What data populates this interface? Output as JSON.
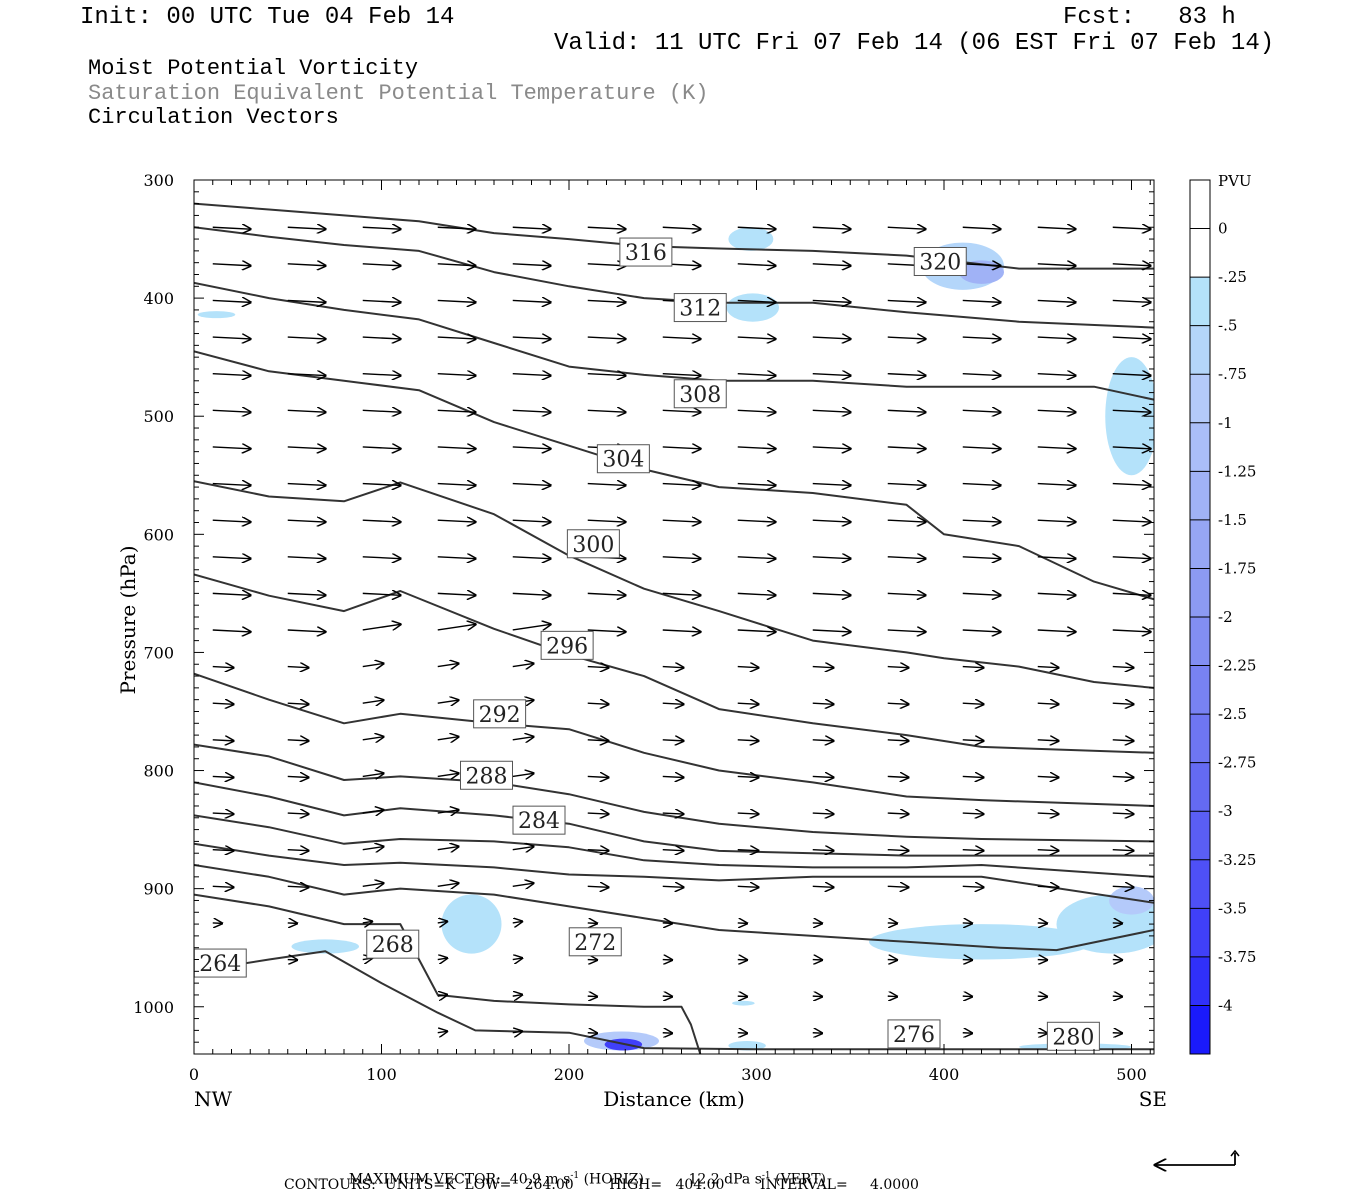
{
  "header": {
    "init": "Init: 00 UTC Tue 04 Feb 14",
    "fcst": "Fcst:   83 h",
    "valid": "Valid: 11 UTC Fri 07 Feb 14 (06 EST Fri 07 Feb 14)"
  },
  "titles": {
    "line1": "Moist Potential Vorticity",
    "line2": "Saturation Equivalent Potential Temperature (K)",
    "line3": "Circulation Vectors"
  },
  "footer": {
    "max_vector_label": "MAXIMUM VECTOR:",
    "max_horiz_value": "40.9 m s",
    "max_horiz_exp": "-1",
    "max_horiz_unit": "(HORIZ)",
    "max_vert_value": "12.2 dPa s",
    "max_vert_exp": "-1",
    "max_vert_unit": "(VERT)",
    "contours": "CONTOURS:  UNITS=K  LOW=   264.00        HIGH=   404.00        INTERVAL=     4.0000"
  },
  "chart_data": {
    "type": "cross-section",
    "xlabel": "Distance (km)",
    "ylabel": "Pressure (hPa)",
    "xlim": [
      0,
      512
    ],
    "ylim": [
      1040,
      300
    ],
    "x_ticks": [
      0,
      100,
      200,
      300,
      400,
      500
    ],
    "y_ticks": [
      300,
      400,
      500,
      600,
      700,
      800,
      900,
      1000
    ],
    "x_endpoints": {
      "left": "NW",
      "right": "SE"
    },
    "colorbar": {
      "unit": "PVU",
      "labels": [
        "0",
        "-.25",
        "-.5",
        "-.75",
        "-1",
        "-1.25",
        "-1.5",
        "-1.75",
        "-2",
        "-2.25",
        "-2.5",
        "-2.75",
        "-3",
        "-3.25",
        "-3.5",
        "-3.75",
        "-4"
      ],
      "colors": [
        "#ffffff",
        "#ffffff",
        "#b4e2fa",
        "#b4d6fa",
        "#b4cafa",
        "#aabef8",
        "#a0b2f6",
        "#96a6f4",
        "#8c9af2",
        "#828ef2",
        "#7882f2",
        "#6e76f2",
        "#646af2",
        "#5a5ef4",
        "#4e50f6",
        "#4040f8",
        "#3030fa",
        "#1a1afc"
      ]
    },
    "theta_contour_labels": [
      {
        "value": "264",
        "x": 14,
        "p": 963
      },
      {
        "value": "268",
        "x": 106,
        "p": 947
      },
      {
        "value": "272",
        "x": 214,
        "p": 945
      },
      {
        "value": "276",
        "x": 384,
        "p": 1023
      },
      {
        "value": "280",
        "x": 469,
        "p": 1025
      },
      {
        "value": "284",
        "x": 184,
        "p": 842
      },
      {
        "value": "288",
        "x": 156,
        "p": 804
      },
      {
        "value": "292",
        "x": 163,
        "p": 752
      },
      {
        "value": "296",
        "x": 199,
        "p": 694
      },
      {
        "value": "300",
        "x": 213,
        "p": 608
      },
      {
        "value": "304",
        "x": 229,
        "p": 536
      },
      {
        "value": "308",
        "x": 270,
        "p": 481
      },
      {
        "value": "312",
        "x": 270,
        "p": 408
      },
      {
        "value": "316",
        "x": 241,
        "p": 361
      },
      {
        "value": "320",
        "x": 398,
        "p": 369
      }
    ],
    "theta_contours": [
      [
        [
          0,
          320
        ],
        [
          40,
          325
        ],
        [
          80,
          330
        ],
        [
          120,
          335
        ],
        [
          160,
          345
        ],
        [
          200,
          350
        ],
        [
          240,
          356
        ],
        [
          280,
          358
        ],
        [
          330,
          360
        ],
        [
          380,
          364
        ],
        [
          440,
          375
        ],
        [
          512,
          375
        ]
      ],
      [
        [
          0,
          340
        ],
        [
          40,
          348
        ],
        [
          80,
          355
        ],
        [
          120,
          360
        ],
        [
          160,
          378
        ],
        [
          200,
          390
        ],
        [
          240,
          400
        ],
        [
          280,
          404
        ],
        [
          330,
          404
        ],
        [
          380,
          412
        ],
        [
          440,
          420
        ],
        [
          512,
          425
        ]
      ],
      [
        [
          0,
          387
        ],
        [
          40,
          400
        ],
        [
          80,
          410
        ],
        [
          120,
          418
        ],
        [
          160,
          438
        ],
        [
          200,
          458
        ],
        [
          240,
          465
        ],
        [
          280,
          470
        ],
        [
          330,
          470
        ],
        [
          380,
          475
        ],
        [
          440,
          475
        ],
        [
          480,
          475
        ],
        [
          512,
          486
        ]
      ],
      [
        [
          0,
          445
        ],
        [
          40,
          462
        ],
        [
          80,
          470
        ],
        [
          120,
          478
        ],
        [
          160,
          505
        ],
        [
          200,
          525
        ],
        [
          240,
          545
        ],
        [
          280,
          560
        ],
        [
          330,
          565
        ],
        [
          380,
          575
        ],
        [
          400,
          600
        ],
        [
          440,
          610
        ],
        [
          480,
          640
        ],
        [
          512,
          655
        ]
      ],
      [
        [
          0,
          555
        ],
        [
          40,
          568
        ],
        [
          80,
          572
        ],
        [
          110,
          556
        ],
        [
          160,
          583
        ],
        [
          200,
          618
        ],
        [
          240,
          646
        ],
        [
          280,
          665
        ],
        [
          330,
          690
        ],
        [
          380,
          700
        ],
        [
          400,
          705
        ],
        [
          440,
          712
        ],
        [
          480,
          725
        ],
        [
          512,
          730
        ]
      ],
      [
        [
          0,
          634
        ],
        [
          40,
          652
        ],
        [
          80,
          665
        ],
        [
          110,
          648
        ],
        [
          160,
          680
        ],
        [
          200,
          702
        ],
        [
          240,
          720
        ],
        [
          280,
          748
        ],
        [
          330,
          760
        ],
        [
          380,
          770
        ],
        [
          420,
          780
        ],
        [
          512,
          785
        ]
      ],
      [
        [
          0,
          718
        ],
        [
          40,
          740
        ],
        [
          80,
          760
        ],
        [
          110,
          752
        ],
        [
          160,
          760
        ],
        [
          200,
          765
        ],
        [
          240,
          785
        ],
        [
          280,
          800
        ],
        [
          330,
          810
        ],
        [
          380,
          822
        ],
        [
          420,
          825
        ],
        [
          512,
          830
        ]
      ],
      [
        [
          0,
          778
        ],
        [
          40,
          788
        ],
        [
          80,
          808
        ],
        [
          110,
          805
        ],
        [
          160,
          810
        ],
        [
          200,
          820
        ],
        [
          240,
          835
        ],
        [
          280,
          845
        ],
        [
          330,
          852
        ],
        [
          380,
          856
        ],
        [
          420,
          858
        ],
        [
          512,
          860
        ]
      ],
      [
        [
          0,
          810
        ],
        [
          40,
          822
        ],
        [
          80,
          838
        ],
        [
          110,
          832
        ],
        [
          160,
          838
        ],
        [
          200,
          845
        ],
        [
          240,
          860
        ],
        [
          280,
          868
        ],
        [
          330,
          870
        ],
        [
          380,
          872
        ],
        [
          420,
          872
        ],
        [
          512,
          872
        ]
      ],
      [
        [
          0,
          838
        ],
        [
          40,
          848
        ],
        [
          80,
          862
        ],
        [
          110,
          858
        ],
        [
          160,
          860
        ],
        [
          200,
          865
        ],
        [
          240,
          876
        ],
        [
          280,
          880
        ],
        [
          330,
          882
        ],
        [
          380,
          882
        ],
        [
          420,
          880
        ],
        [
          512,
          890
        ]
      ],
      [
        [
          0,
          862
        ],
        [
          40,
          872
        ],
        [
          80,
          880
        ],
        [
          110,
          878
        ],
        [
          160,
          882
        ],
        [
          200,
          888
        ],
        [
          240,
          890
        ],
        [
          280,
          893
        ],
        [
          330,
          890
        ],
        [
          380,
          890
        ],
        [
          420,
          890
        ],
        [
          512,
          912
        ]
      ],
      [
        [
          0,
          880
        ],
        [
          40,
          890
        ],
        [
          80,
          905
        ],
        [
          110,
          900
        ],
        [
          160,
          905
        ],
        [
          200,
          915
        ],
        [
          240,
          925
        ],
        [
          280,
          935
        ],
        [
          330,
          940
        ],
        [
          380,
          945
        ],
        [
          430,
          950
        ],
        [
          460,
          952
        ],
        [
          512,
          935
        ]
      ],
      [
        [
          0,
          905
        ],
        [
          40,
          915
        ],
        [
          80,
          930
        ],
        [
          110,
          930
        ],
        [
          120,
          960
        ],
        [
          130,
          990
        ],
        [
          160,
          995
        ],
        [
          200,
          998
        ],
        [
          240,
          1000
        ],
        [
          260,
          1000
        ],
        [
          265,
          1015
        ],
        [
          270,
          1040
        ]
      ],
      [
        [
          0,
          970
        ],
        [
          40,
          960
        ],
        [
          70,
          953
        ],
        [
          100,
          980
        ],
        [
          130,
          1005
        ],
        [
          150,
          1020
        ],
        [
          200,
          1022
        ],
        [
          240,
          1035
        ],
        [
          300,
          1036
        ],
        [
          400,
          1036
        ],
        [
          512,
          1036
        ]
      ]
    ],
    "pv_shading": [
      {
        "x": 148,
        "p": 930,
        "rx": 16,
        "rp": 25,
        "level": 2
      },
      {
        "x": 228,
        "p": 1029,
        "rx": 20,
        "rp": 8,
        "level": 4
      },
      {
        "x": 229,
        "p": 1032,
        "rx": 10,
        "rp": 5,
        "level": 15
      },
      {
        "x": 70,
        "p": 949,
        "rx": 18,
        "rp": 6,
        "level": 2
      },
      {
        "x": 410,
        "p": 373,
        "rx": 22,
        "rp": 20,
        "level": 3
      },
      {
        "x": 420,
        "p": 378,
        "rx": 12,
        "rp": 10,
        "level": 6
      },
      {
        "x": 297,
        "p": 350,
        "rx": 12,
        "rp": 10,
        "level": 2
      },
      {
        "x": 298,
        "p": 408,
        "rx": 14,
        "rp": 12,
        "level": 2
      },
      {
        "x": 500,
        "p": 500,
        "rx": 14,
        "rp": 50,
        "level": 2
      },
      {
        "x": 490,
        "p": 930,
        "rx": 30,
        "rp": 25,
        "level": 2
      },
      {
        "x": 420,
        "p": 945,
        "rx": 60,
        "rp": 15,
        "level": 2
      },
      {
        "x": 500,
        "p": 910,
        "rx": 12,
        "rp": 12,
        "level": 4
      },
      {
        "x": 12,
        "p": 414,
        "rx": 10,
        "rp": 3,
        "level": 2
      },
      {
        "x": 295,
        "p": 1033,
        "rx": 10,
        "rp": 4,
        "level": 2
      },
      {
        "x": 470,
        "p": 1034,
        "rx": 30,
        "rp": 3,
        "level": 2
      },
      {
        "x": 293,
        "p": 997,
        "rx": 6,
        "rp": 2,
        "level": 2
      }
    ]
  }
}
